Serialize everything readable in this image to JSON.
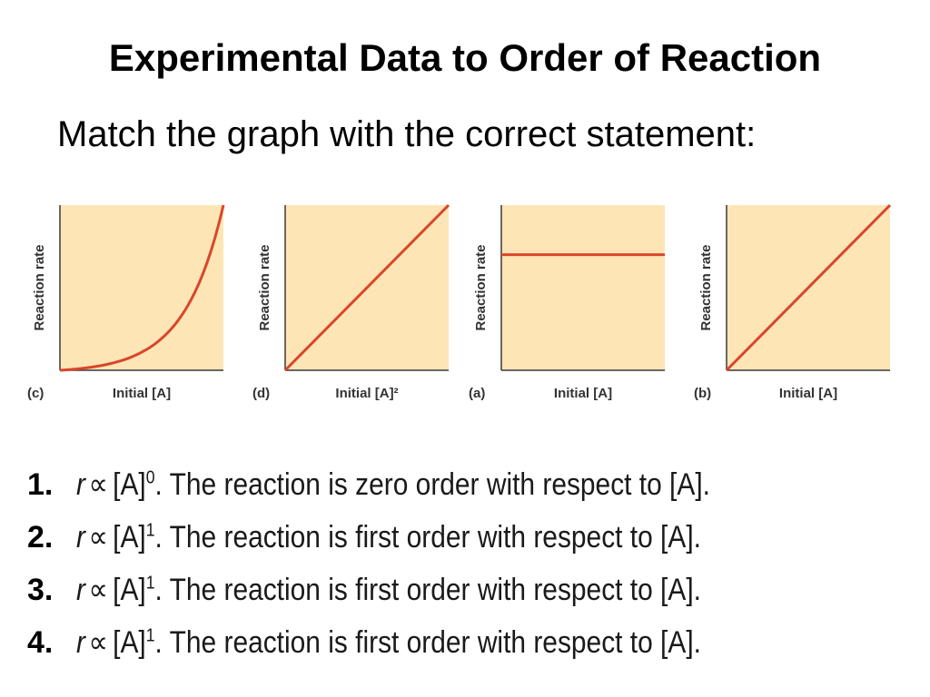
{
  "slide": {
    "title": "Experimental Data to Order of Reaction",
    "subtitle": "Match the graph with the correct statement:"
  },
  "colors": {
    "panel_fill": "#fde5b6",
    "curve": "#d9462a",
    "axis": "#3a3a3a"
  },
  "chart_data": [
    {
      "type": "line",
      "panel_label": "(c)",
      "xlabel": "Initial [A]",
      "ylabel": "Reaction rate",
      "shape": "exponential",
      "x": [
        0,
        0.1,
        0.2,
        0.3,
        0.4,
        0.5,
        0.6,
        0.7,
        0.8,
        0.9,
        0.95,
        1.0
      ],
      "y": [
        0,
        0.01,
        0.03,
        0.07,
        0.12,
        0.19,
        0.28,
        0.4,
        0.55,
        0.75,
        0.87,
        1.0
      ]
    },
    {
      "type": "line",
      "panel_label": "(d)",
      "xlabel": "Initial [A]²",
      "ylabel": "Reaction rate",
      "shape": "linear",
      "x": [
        0,
        1
      ],
      "y": [
        0,
        1
      ]
    },
    {
      "type": "line",
      "panel_label": "(a)",
      "xlabel": "Initial [A]",
      "ylabel": "Reaction rate",
      "shape": "constant",
      "x": [
        0,
        1
      ],
      "y": [
        0.7,
        0.7
      ]
    },
    {
      "type": "line",
      "panel_label": "(b)",
      "xlabel": "Initial [A]",
      "ylabel": "Reaction rate",
      "shape": "linear",
      "x": [
        0,
        1
      ],
      "y": [
        0,
        1
      ]
    }
  ],
  "statements": [
    {
      "number": "1.",
      "variable": "r",
      "symbol": "∝",
      "base": "[A]",
      "exponent": "0",
      "text": ". The reaction is zero order with respect to [A]."
    },
    {
      "number": "2.",
      "variable": "r",
      "symbol": "∝",
      "base": "[A]",
      "exponent": "1",
      "text": ". The reaction is first order with respect to [A]."
    },
    {
      "number": "3.",
      "variable": "r",
      "symbol": "∝",
      "base": "[A]",
      "exponent": "1",
      "text": ". The reaction is first order with respect to [A]."
    },
    {
      "number": "4.",
      "variable": "r",
      "symbol": "∝",
      "base": "[A]",
      "exponent": "1",
      "text": ". The reaction is first order with respect to [A]."
    }
  ]
}
